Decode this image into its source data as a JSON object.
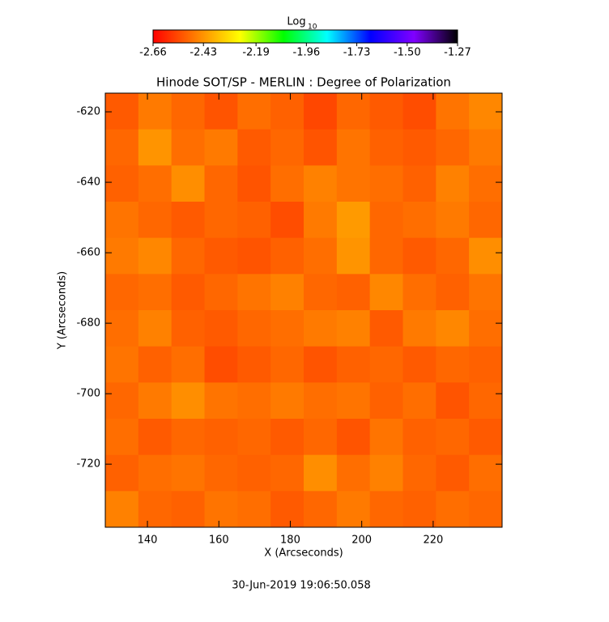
{
  "chart_data": {
    "type": "heatmap",
    "title": "Hinode SOT/SP - MERLIN : Degree of Polarization",
    "x_label": "X (Arcseconds)",
    "y_label": "Y (Arcseconds)",
    "footer": "30-Jun-2019 19:06:50.058",
    "colorbar_label": "Log",
    "colorbar_label_sub": "10",
    "colormap": [
      "#ff0000",
      "#ff8000",
      "#ffff00",
      "#00ff00",
      "#00ffff",
      "#0000ff",
      "#8000ff",
      "#000000"
    ],
    "clim": [
      -2.66,
      -1.27
    ],
    "cticks": [
      -2.66,
      -2.43,
      -2.19,
      -1.96,
      -1.73,
      {
        "value": -1.5,
        "label": "-1.50"
      },
      -1.27
    ],
    "xlim": [
      128.2,
      239.3
    ],
    "ylim": [
      -737.9,
      -614.7
    ],
    "xticks": [
      140,
      160,
      180,
      200,
      220
    ],
    "yticks": [
      -620,
      -640,
      -660,
      -680,
      -700,
      -720
    ],
    "z": [
      [
        -2.52,
        -2.47,
        -2.5,
        -2.53,
        -2.49,
        -2.51,
        -2.55,
        -2.5,
        -2.52,
        -2.54,
        -2.48,
        -2.45
      ],
      [
        -2.5,
        -2.43,
        -2.49,
        -2.47,
        -2.52,
        -2.5,
        -2.53,
        -2.48,
        -2.51,
        -2.52,
        -2.5,
        -2.47
      ],
      [
        -2.51,
        -2.49,
        -2.44,
        -2.5,
        -2.53,
        -2.49,
        -2.46,
        -2.48,
        -2.49,
        -2.51,
        -2.46,
        -2.49
      ],
      [
        -2.48,
        -2.5,
        -2.52,
        -2.5,
        -2.51,
        -2.54,
        -2.47,
        -2.42,
        -2.5,
        -2.49,
        -2.47,
        -2.5
      ],
      [
        -2.47,
        -2.45,
        -2.5,
        -2.52,
        -2.53,
        -2.51,
        -2.49,
        -2.43,
        -2.5,
        -2.52,
        -2.5,
        -2.44
      ],
      [
        -2.5,
        -2.49,
        -2.52,
        -2.5,
        -2.48,
        -2.46,
        -2.5,
        -2.51,
        -2.45,
        -2.49,
        -2.51,
        -2.48
      ],
      [
        -2.49,
        -2.46,
        -2.51,
        -2.52,
        -2.5,
        -2.49,
        -2.47,
        -2.46,
        -2.52,
        -2.47,
        -2.45,
        -2.49
      ],
      [
        -2.48,
        -2.51,
        -2.49,
        -2.54,
        -2.52,
        -2.5,
        -2.53,
        -2.51,
        -2.5,
        -2.52,
        -2.5,
        -2.51
      ],
      [
        -2.5,
        -2.47,
        -2.44,
        -2.48,
        -2.49,
        -2.47,
        -2.49,
        -2.48,
        -2.51,
        -2.49,
        -2.53,
        -2.5
      ],
      [
        -2.49,
        -2.52,
        -2.5,
        -2.51,
        -2.5,
        -2.52,
        -2.5,
        -2.53,
        -2.48,
        -2.51,
        -2.5,
        -2.52
      ],
      [
        -2.51,
        -2.49,
        -2.48,
        -2.5,
        -2.51,
        -2.5,
        -2.44,
        -2.49,
        -2.46,
        -2.5,
        -2.52,
        -2.49
      ],
      [
        -2.46,
        -2.5,
        -2.51,
        -2.48,
        -2.49,
        -2.52,
        -2.5,
        -2.47,
        -2.5,
        -2.51,
        -2.49,
        -2.5
      ]
    ]
  }
}
